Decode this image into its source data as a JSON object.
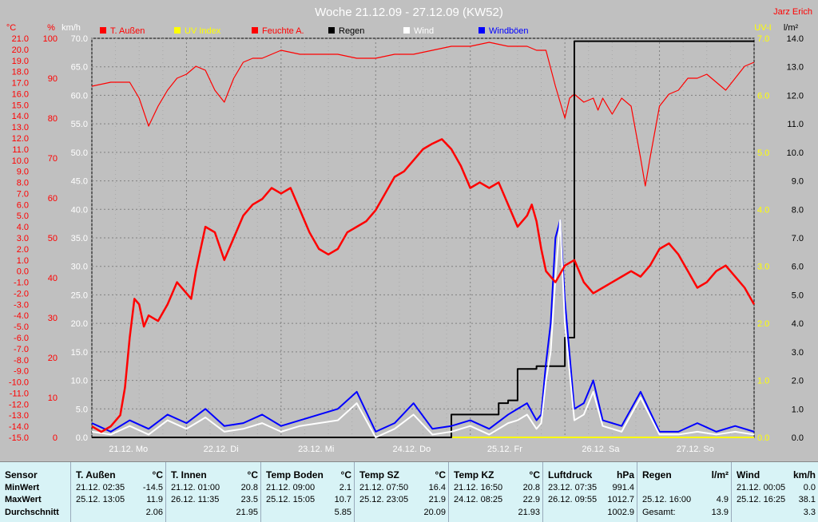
{
  "title": "Woche 21.12.09 - 27.12.09 (KW52)",
  "author": "Jarz Erich",
  "axes": {
    "celsius_unit": "°C",
    "percent_unit": "%",
    "kmh_unit": "km/h",
    "uv_unit": "UV-I",
    "rain_unit": "l/m²",
    "celsius_ticks": [
      "21.0",
      "20.0",
      "19.0",
      "18.0",
      "17.0",
      "16.0",
      "15.0",
      "14.0",
      "13.0",
      "12.0",
      "11.0",
      "10.0",
      "9.0",
      "8.0",
      "7.0",
      "6.0",
      "5.0",
      "4.0",
      "3.0",
      "2.0",
      "1.0",
      "0.0",
      "-1.0",
      "-2.0",
      "-3.0",
      "-4.0",
      "-5.0",
      "-6.0",
      "-7.0",
      "-8.0",
      "-9.0",
      "-10.0",
      "-11.0",
      "-12.0",
      "-13.0",
      "-14.0",
      "-15.0"
    ],
    "percent_ticks": [
      "100",
      "90",
      "80",
      "70",
      "60",
      "50",
      "40",
      "30",
      "20",
      "10",
      "0"
    ],
    "kmh_ticks": [
      "70.0",
      "65.0",
      "60.0",
      "55.0",
      "50.0",
      "45.0",
      "40.0",
      "35.0",
      "30.0",
      "25.0",
      "20.0",
      "15.0",
      "10.0",
      "5.0",
      "0.0"
    ],
    "uv_ticks": [
      "7.0",
      "6.0",
      "5.0",
      "4.0",
      "3.0",
      "2.0",
      "1.0",
      "0.0"
    ],
    "rain_ticks": [
      "14.0",
      "13.0",
      "12.0",
      "11.0",
      "10.0",
      "9.0",
      "8.0",
      "7.0",
      "6.0",
      "5.0",
      "4.0",
      "3.0",
      "2.0",
      "1.0",
      "0.0"
    ],
    "day_labels": [
      "21.12.  Mo",
      "22.12.  Di",
      "23.12.  Mi",
      "24.12.  Do",
      "25.12.  Fr",
      "26.12.  Sa",
      "27.12.  So"
    ]
  },
  "legend": [
    {
      "label": "T. Außen",
      "color": "#ff0000"
    },
    {
      "label": "UV Index",
      "color": "#ffff00"
    },
    {
      "label": "Feuchte A.",
      "color": "#ff0000"
    },
    {
      "label": "Regen",
      "color": "#000000"
    },
    {
      "label": "Wind",
      "color": "#ffffff"
    },
    {
      "label": "Windböen",
      "color": "#0000ff"
    }
  ],
  "chart_data": {
    "type": "line",
    "title": "Woche 21.12.09 - 27.12.09 (KW52)",
    "x_range_days": [
      0,
      7
    ],
    "ylim_celsius": [
      -15,
      21
    ],
    "ylim_percent": [
      0,
      100
    ],
    "ylim_kmh": [
      0,
      70
    ],
    "ylim_uv": [
      0,
      7
    ],
    "ylim_rain": [
      0,
      14
    ],
    "grid": true,
    "legend_position": "top",
    "series": [
      {
        "name": "T. Außen",
        "axis": "celsius",
        "color": "#ff0000",
        "x": [
          0,
          0.1,
          0.2,
          0.3,
          0.35,
          0.4,
          0.45,
          0.5,
          0.55,
          0.6,
          0.7,
          0.8,
          0.9,
          1.0,
          1.05,
          1.1,
          1.2,
          1.3,
          1.4,
          1.5,
          1.6,
          1.7,
          1.8,
          1.9,
          2.0,
          2.1,
          2.2,
          2.3,
          2.4,
          2.5,
          2.6,
          2.7,
          2.8,
          2.9,
          3.0,
          3.1,
          3.2,
          3.3,
          3.4,
          3.5,
          3.6,
          3.7,
          3.8,
          3.9,
          4.0,
          4.1,
          4.2,
          4.3,
          4.4,
          4.5,
          4.6,
          4.65,
          4.7,
          4.75,
          4.8,
          4.9,
          5.0,
          5.1,
          5.2,
          5.3,
          5.4,
          5.5,
          5.6,
          5.7,
          5.8,
          5.9,
          6.0,
          6.1,
          6.2,
          6.3,
          6.4,
          6.5,
          6.6,
          6.7,
          6.8,
          6.9,
          7.0
        ],
        "values": [
          -14.0,
          -14.5,
          -14.0,
          -13.0,
          -10.5,
          -6.0,
          -2.5,
          -3.0,
          -5.0,
          -4.0,
          -4.5,
          -3.0,
          -1.0,
          -2.0,
          -2.5,
          0.0,
          4.0,
          3.5,
          1.0,
          3.0,
          5.0,
          6.0,
          6.5,
          7.5,
          7.0,
          7.5,
          5.5,
          3.5,
          2.0,
          1.5,
          2.0,
          3.5,
          4.0,
          4.5,
          5.5,
          7.0,
          8.5,
          9.0,
          10.0,
          11.0,
          11.5,
          11.9,
          11.0,
          9.5,
          7.5,
          8.0,
          7.5,
          8.0,
          6.0,
          4.0,
          5.0,
          6.0,
          4.5,
          2.0,
          0.0,
          -1.0,
          0.5,
          1.0,
          -1.0,
          -2.0,
          -1.5,
          -1.0,
          -0.5,
          0.0,
          -0.5,
          0.5,
          2.0,
          2.5,
          1.5,
          0.0,
          -1.5,
          -1.0,
          0.0,
          0.5,
          -0.5,
          -1.5,
          -3.0
        ]
      },
      {
        "name": "Feuchte A.",
        "axis": "percent",
        "color": "#ff0000",
        "x": [
          0,
          0.2,
          0.4,
          0.5,
          0.6,
          0.7,
          0.8,
          0.9,
          1.0,
          1.1,
          1.2,
          1.3,
          1.4,
          1.5,
          1.6,
          1.7,
          1.8,
          1.9,
          2.0,
          2.2,
          2.4,
          2.6,
          2.8,
          3.0,
          3.2,
          3.4,
          3.6,
          3.8,
          4.0,
          4.2,
          4.4,
          4.6,
          4.7,
          4.8,
          4.9,
          4.95,
          5.0,
          5.05,
          5.1,
          5.2,
          5.3,
          5.35,
          5.4,
          5.5,
          5.6,
          5.7,
          5.8,
          5.85,
          5.9,
          6.0,
          6.1,
          6.2,
          6.3,
          6.4,
          6.5,
          6.6,
          6.7,
          6.8,
          6.9,
          7.0
        ],
        "values": [
          88,
          89,
          89,
          85,
          78,
          83,
          87,
          90,
          91,
          93,
          92,
          87,
          84,
          90,
          94,
          95,
          95,
          96,
          97,
          96,
          96,
          96,
          95,
          95,
          96,
          96,
          97,
          98,
          98,
          99,
          98,
          98,
          97,
          97,
          88,
          84,
          80,
          85,
          86,
          84,
          85,
          82,
          85,
          81,
          85,
          83,
          70,
          63,
          70,
          83,
          86,
          87,
          90,
          90,
          91,
          89,
          87,
          90,
          93,
          94
        ]
      },
      {
        "name": "Regen",
        "axis": "rain",
        "color": "#000000",
        "x": [
          0,
          0.6,
          3.6,
          3.8,
          4.0,
          4.3,
          4.4,
          4.5,
          4.7,
          4.9,
          5.0,
          5.1,
          5.2,
          5.3,
          7.0
        ],
        "values": [
          0,
          0,
          0,
          0.8,
          0.8,
          1.2,
          1.3,
          2.4,
          2.5,
          2.5,
          3.5,
          13.9,
          13.9,
          13.9,
          13.9
        ]
      },
      {
        "name": "Wind",
        "axis": "kmh",
        "color": "#ffffff",
        "x": [
          0,
          0.2,
          0.4,
          0.6,
          0.8,
          1.0,
          1.2,
          1.4,
          1.6,
          1.8,
          2.0,
          2.2,
          2.4,
          2.6,
          2.8,
          3.0,
          3.2,
          3.4,
          3.6,
          3.8,
          4.0,
          4.2,
          4.4,
          4.5,
          4.6,
          4.7,
          4.75,
          4.8,
          4.85,
          4.9,
          4.95,
          5.0,
          5.1,
          5.2,
          5.3,
          5.4,
          5.6,
          5.8,
          6.0,
          6.2,
          6.4,
          6.6,
          6.8,
          7.0
        ],
        "values": [
          1.0,
          0.5,
          2.0,
          0.5,
          3.0,
          1.5,
          3.5,
          1.0,
          1.5,
          2.5,
          1.0,
          2.0,
          2.5,
          3.0,
          6.0,
          0.0,
          1.5,
          4.0,
          0.5,
          1.0,
          2.0,
          0.5,
          2.5,
          3.0,
          4.0,
          1.5,
          2.5,
          10.0,
          15.0,
          28.0,
          38.1,
          20.0,
          3.0,
          4.0,
          8.0,
          2.0,
          1.0,
          7.0,
          0.5,
          0.5,
          1.0,
          0.5,
          1.0,
          0.5
        ]
      },
      {
        "name": "Windböen",
        "axis": "kmh",
        "color": "#0000ff",
        "x": [
          0,
          0.2,
          0.4,
          0.6,
          0.8,
          1.0,
          1.2,
          1.4,
          1.6,
          1.8,
          2.0,
          2.2,
          2.4,
          2.6,
          2.8,
          3.0,
          3.2,
          3.4,
          3.6,
          3.8,
          4.0,
          4.2,
          4.4,
          4.5,
          4.6,
          4.7,
          4.75,
          4.8,
          4.85,
          4.9,
          4.95,
          5.0,
          5.1,
          5.2,
          5.3,
          5.4,
          5.6,
          5.8,
          6.0,
          6.2,
          6.4,
          6.6,
          6.8,
          7.0
        ],
        "values": [
          2.5,
          1.0,
          3.0,
          1.5,
          4.0,
          2.5,
          5.0,
          2.0,
          2.5,
          4.0,
          2.0,
          3.0,
          4.0,
          5.0,
          8.0,
          1.0,
          2.5,
          6.0,
          1.5,
          2.0,
          3.0,
          1.5,
          4.0,
          5.0,
          6.0,
          3.0,
          4.0,
          13.0,
          20.0,
          35.0,
          38.1,
          24.0,
          5.0,
          6.0,
          10.0,
          3.0,
          2.0,
          8.0,
          1.0,
          1.0,
          2.5,
          1.0,
          2.0,
          1.0
        ]
      },
      {
        "name": "UV Index",
        "axis": "uv",
        "color": "#ffff00",
        "x": [
          0,
          7
        ],
        "values": [
          0,
          0
        ]
      }
    ]
  },
  "stats": {
    "headers": {
      "sensor": "Sensor",
      "minwert": "MinWert",
      "maxwert": "MaxWert",
      "durchschnitt": "Durchschnitt"
    },
    "columns": [
      {
        "name": "T. Außen",
        "unit": "°C",
        "min_time": "21.12.  02:35",
        "min": "-14.5",
        "max_time": "25.12.  13:05",
        "max": "11.9",
        "avg": "2.06"
      },
      {
        "name": "T. Innen",
        "unit": "°C",
        "min_time": "21.12.  01:00",
        "min": "20.8",
        "max_time": "26.12.  11:35",
        "max": "23.5",
        "avg": "21.95"
      },
      {
        "name": "Temp Boden",
        "unit": "°C",
        "min_time": "21.12.  09:00",
        "min": "2.1",
        "max_time": "25.12.  15:05",
        "max": "10.7",
        "avg": "5.85"
      },
      {
        "name": "Temp SZ",
        "unit": "°C",
        "min_time": "21.12.  07:50",
        "min": "16.4",
        "max_time": "25.12.  23:05",
        "max": "21.9",
        "avg": "20.09"
      },
      {
        "name": "Temp KZ",
        "unit": "°C",
        "min_time": "21.12.  16:50",
        "min": "20.8",
        "max_time": "24.12.  08:25",
        "max": "22.9",
        "avg": "21.93"
      },
      {
        "name": "Luftdruck",
        "unit": "hPa",
        "min_time": "23.12.  07:35",
        "min": "991.4",
        "max_time": "26.12.  09:55",
        "max": "1012.7",
        "avg": "1002.9"
      },
      {
        "name": "Regen",
        "unit": "l/m²",
        "min_time": "",
        "min": "",
        "max_time": "25.12.  16:00",
        "max": "4.9",
        "avg_label": "Gesamt:",
        "avg": "13.9"
      },
      {
        "name": "Wind",
        "unit": "km/h",
        "min_time": "21.12.  00:05",
        "min": "0.0",
        "max_time": "25.12.  16:25",
        "max": "38.1",
        "avg": "3.3"
      }
    ]
  }
}
